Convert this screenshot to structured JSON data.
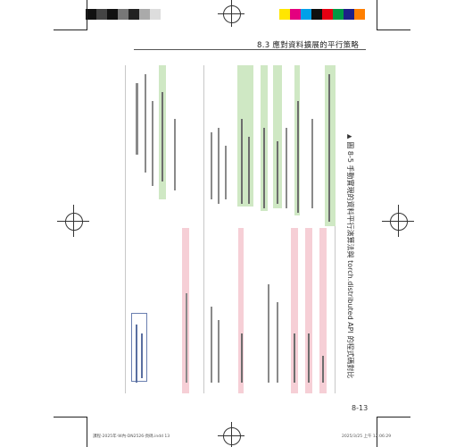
{
  "header": {
    "section_title": "8.3  應對資料擴展的平行策略"
  },
  "figure": {
    "caption": "圖 8-5 手動實現的資料平行演算法與 torch.distributed API 的程式碼對比"
  },
  "page": {
    "number": "8-13"
  },
  "footer": {
    "left_text": "課程-2025年-W內-DN2526-頁碼.indd   13",
    "right_text": "2025/3/25   上午 12:06:29"
  },
  "print_colors": {
    "black_tones": [
      "#111111",
      "#333333",
      "#555555",
      "#777777",
      "#999999",
      "#bbbbbb",
      "#dddddd"
    ],
    "process": [
      "#ffe600",
      "#e4007f",
      "#00a0e9",
      "#0f0f0f",
      "#e60012",
      "#009944",
      "#1d2088",
      "#ff7f00"
    ]
  }
}
